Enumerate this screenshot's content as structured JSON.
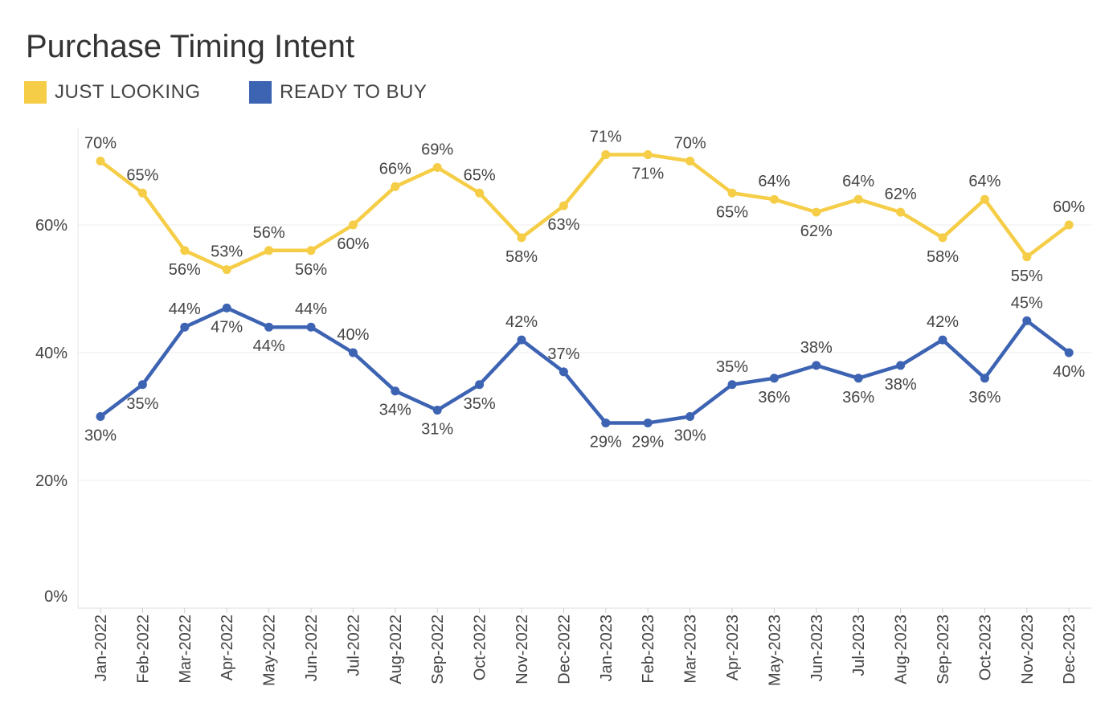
{
  "chart_data": {
    "type": "line",
    "title": "Purchase Timing Intent",
    "x": [
      "Jan-2022",
      "Feb-2022",
      "Mar-2022",
      "Apr-2022",
      "May-2022",
      "Jun-2022",
      "Jul-2022",
      "Aug-2022",
      "Sep-2022",
      "Oct-2022",
      "Nov-2022",
      "Dec-2022",
      "Jan-2023",
      "Feb-2023",
      "Mar-2023",
      "Apr-2023",
      "May-2023",
      "Jun-2023",
      "Jul-2023",
      "Aug-2023",
      "Sep-2023",
      "Oct-2023",
      "Nov-2023",
      "Dec-2023"
    ],
    "series": [
      {
        "name": "JUST LOOKING",
        "color": "#f5cd46",
        "values": [
          70,
          65,
          56,
          53,
          56,
          56,
          60,
          66,
          69,
          65,
          58,
          63,
          71,
          71,
          70,
          65,
          64,
          62,
          64,
          62,
          58,
          64,
          55,
          60
        ],
        "value_labels": [
          "70%",
          "65%",
          "56%",
          "53%",
          "56%",
          "56%",
          "60%",
          "66%",
          "69%",
          "65%",
          "58%",
          "63%",
          "71%",
          "71%",
          "70%",
          "65%",
          "64%",
          "62%",
          "64%",
          "62%",
          "58%",
          "64%",
          "55%",
          "60%"
        ]
      },
      {
        "name": "READY TO BUY",
        "color": "#3d63b3",
        "values": [
          30,
          35,
          44,
          47,
          44,
          44,
          40,
          34,
          31,
          35,
          42,
          37,
          29,
          29,
          30,
          35,
          36,
          38,
          36,
          38,
          42,
          36,
          45,
          40
        ],
        "value_labels": [
          "30%",
          "35%",
          "44%",
          "47%",
          "44%",
          "44%",
          "40%",
          "34%",
          "31%",
          "35%",
          "42%",
          "37%",
          "29%",
          "29%",
          "30%",
          "35%",
          "36%",
          "38%",
          "36%",
          "38%",
          "42%",
          "36%",
          "45%",
          "40%"
        ]
      }
    ],
    "ylim": [
      0,
      78
    ],
    "yticks": [
      0,
      20,
      40,
      60
    ],
    "ytick_labels": [
      "0%",
      "20%",
      "40%",
      "60%"
    ],
    "grid": true,
    "legend": "top-left"
  }
}
